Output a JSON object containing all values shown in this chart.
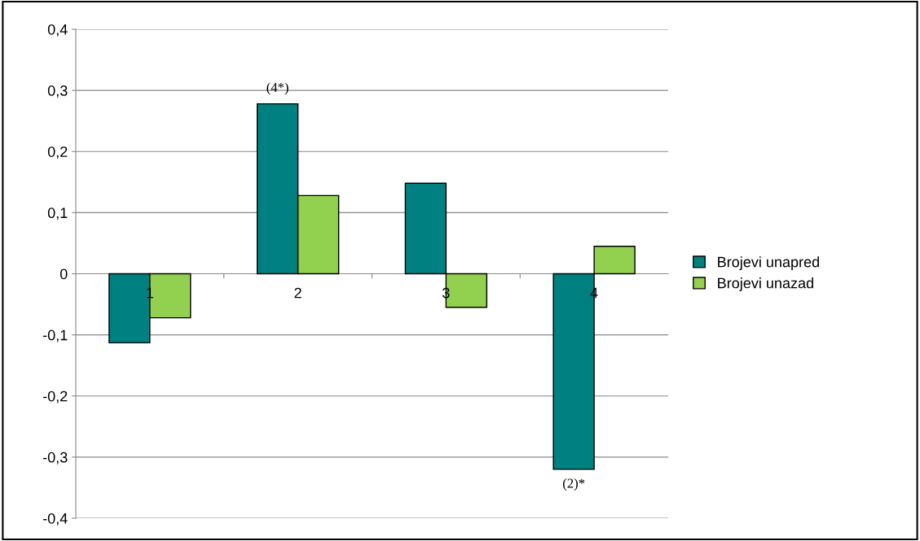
{
  "chart_data": {
    "type": "bar",
    "categories": [
      "1",
      "2",
      "3",
      "4"
    ],
    "series": [
      {
        "name": "Brojevi unapred",
        "color": "#008080",
        "values": [
          -0.113,
          0.278,
          0.148,
          -0.32
        ]
      },
      {
        "name": "Brojevi unazad",
        "color": "#92d050",
        "values": [
          -0.072,
          0.128,
          -0.055,
          0.045
        ]
      }
    ],
    "ylim": [
      -0.4,
      0.4
    ],
    "yticks": [
      {
        "value": -0.4,
        "label": "-0,4"
      },
      {
        "value": -0.3,
        "label": "-0,3"
      },
      {
        "value": -0.2,
        "label": "-0,2"
      },
      {
        "value": -0.1,
        "label": "-0,1"
      },
      {
        "value": 0,
        "label": "0"
      },
      {
        "value": 0.1,
        "label": "0,1"
      },
      {
        "value": 0.2,
        "label": "0,2"
      },
      {
        "value": 0.3,
        "label": "0,3"
      },
      {
        "value": 0.4,
        "label": "0,4"
      }
    ],
    "grid": "y",
    "legend": "right",
    "annotations": [
      {
        "text": "(4*)",
        "x": "2",
        "y": 0.278
      },
      {
        "text": "(2)*",
        "x": "4",
        "y": -0.32
      }
    ]
  }
}
